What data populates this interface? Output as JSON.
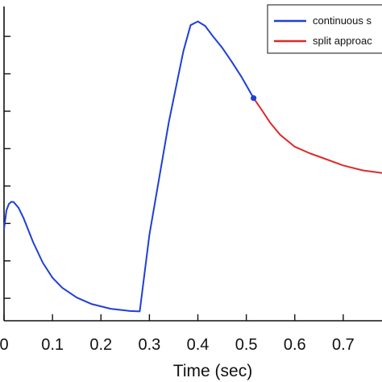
{
  "chart_data": {
    "type": "line",
    "xlabel": "Time (sec)",
    "ylabel": "",
    "title": "",
    "xlim": [
      0,
      0.78
    ],
    "ylim": [
      0,
      8.4
    ],
    "xticks": [
      0,
      0.1,
      0.2,
      0.3,
      0.4,
      0.5,
      0.6,
      0.7
    ],
    "xtick_labels": [
      "0",
      "0.1",
      "0.2",
      "0.3",
      "0.4",
      "0.5",
      "0.6",
      "0.7"
    ],
    "yticks": [
      0.6,
      1.6,
      2.6,
      3.6,
      4.6,
      5.6,
      6.6,
      7.6
    ],
    "grid": false,
    "legend_position": "top-right",
    "series": [
      {
        "name": "continuous s",
        "color": "#1f3fd6",
        "x": [
          0,
          0.005,
          0.01,
          0.015,
          0.02,
          0.03,
          0.04,
          0.06,
          0.08,
          0.1,
          0.12,
          0.15,
          0.18,
          0.22,
          0.26,
          0.28,
          0.3,
          0.34,
          0.37,
          0.385,
          0.4,
          0.415,
          0.43,
          0.45,
          0.47,
          0.49,
          0.515
        ],
        "y": [
          2.45,
          2.95,
          3.12,
          3.18,
          3.17,
          3.02,
          2.75,
          2.1,
          1.55,
          1.15,
          0.88,
          0.62,
          0.45,
          0.32,
          0.26,
          0.25,
          2.3,
          5.3,
          7.2,
          7.9,
          8.0,
          7.88,
          7.62,
          7.3,
          6.92,
          6.52,
          5.95
        ]
      },
      {
        "name": "split approac",
        "color": "#dd2a2a",
        "x": [
          0.515,
          0.53,
          0.55,
          0.57,
          0.6,
          0.63,
          0.66,
          0.7,
          0.74,
          0.78
        ],
        "y": [
          5.95,
          5.67,
          5.28,
          4.97,
          4.65,
          4.48,
          4.34,
          4.15,
          4.02,
          3.95
        ]
      }
    ],
    "marker": {
      "x": 0.515,
      "y": 5.95,
      "color": "#1f3fd6"
    }
  },
  "legend": {
    "items": [
      {
        "label": "continuous s",
        "color": "#1f3fd6"
      },
      {
        "label": "split approac",
        "color": "#dd2a2a"
      }
    ]
  }
}
